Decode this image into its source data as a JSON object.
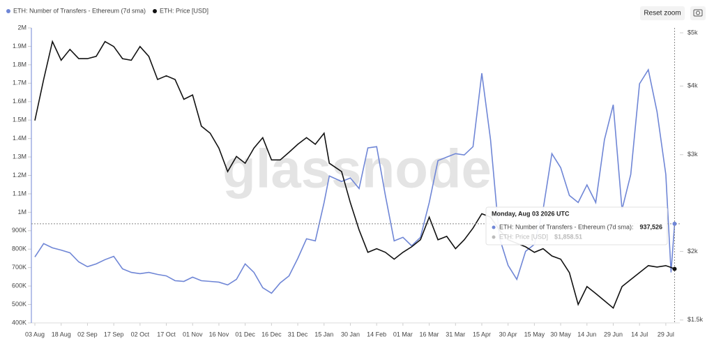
{
  "chart_data": {
    "type": "line",
    "legend": [
      "ETH: Number of Transfers - Ethereum (7d sma)",
      "ETH: Price [USD]"
    ],
    "reset_button": "Reset zoom",
    "watermark": "glassnode",
    "x": [
      0,
      5,
      10,
      15,
      20,
      25,
      30,
      35,
      40,
      45,
      50,
      55,
      60,
      65,
      70,
      75,
      80,
      85,
      90,
      95,
      100,
      105,
      110,
      115,
      120,
      125,
      130,
      135,
      140,
      145,
      150,
      155,
      160,
      165,
      168,
      175,
      180,
      185,
      190,
      195,
      200,
      205,
      210,
      215,
      220,
      225,
      230,
      235,
      240,
      245,
      250,
      255,
      260,
      265,
      270,
      275,
      280,
      285,
      290,
      295,
      300,
      305,
      310,
      315,
      320,
      325,
      330,
      335,
      340,
      345,
      350,
      355,
      360,
      363,
      365
    ],
    "xlim": [
      -2,
      368
    ],
    "xticks": [
      {
        "value": 0,
        "label": "03 Aug"
      },
      {
        "value": 15,
        "label": "18 Aug"
      },
      {
        "value": 30,
        "label": "02 Sep"
      },
      {
        "value": 45,
        "label": "17 Sep"
      },
      {
        "value": 60,
        "label": "02 Oct"
      },
      {
        "value": 75,
        "label": "17 Oct"
      },
      {
        "value": 90,
        "label": "01 Nov"
      },
      {
        "value": 105,
        "label": "16 Nov"
      },
      {
        "value": 120,
        "label": "01 Dec"
      },
      {
        "value": 135,
        "label": "16 Dec"
      },
      {
        "value": 150,
        "label": "31 Dec"
      },
      {
        "value": 165,
        "label": "15 Jan"
      },
      {
        "value": 180,
        "label": "30 Jan"
      },
      {
        "value": 195,
        "label": "14 Feb"
      },
      {
        "value": 210,
        "label": "01 Mar"
      },
      {
        "value": 225,
        "label": "16 Mar"
      },
      {
        "value": 240,
        "label": "31 Mar"
      },
      {
        "value": 255,
        "label": "15 Apr"
      },
      {
        "value": 270,
        "label": "30 Apr"
      },
      {
        "value": 285,
        "label": "15 May"
      },
      {
        "value": 300,
        "label": "30 May"
      },
      {
        "value": 315,
        "label": "14 Jun"
      },
      {
        "value": 330,
        "label": "29 Jun"
      },
      {
        "value": 345,
        "label": "14 Jul"
      },
      {
        "value": 360,
        "label": "29 Jul"
      }
    ],
    "ylim": [
      400000,
      2000000
    ],
    "yticks": [
      {
        "value": 2000000,
        "label": "2M"
      },
      {
        "value": 1900000,
        "label": "1.9M"
      },
      {
        "value": 1800000,
        "label": "1.8M"
      },
      {
        "value": 1700000,
        "label": "1.7M"
      },
      {
        "value": 1600000,
        "label": "1.6M"
      },
      {
        "value": 1500000,
        "label": "1.5M"
      },
      {
        "value": 1400000,
        "label": "1.4M"
      },
      {
        "value": 1300000,
        "label": "1.3M"
      },
      {
        "value": 1200000,
        "label": "1.2M"
      },
      {
        "value": 1100000,
        "label": "1.1M"
      },
      {
        "value": 1000000,
        "label": "1M"
      },
      {
        "value": 900000,
        "label": "900K"
      },
      {
        "value": 800000,
        "label": "800K"
      },
      {
        "value": 700000,
        "label": "700K"
      },
      {
        "value": 600000,
        "label": "600K"
      },
      {
        "value": 500000,
        "label": "500K"
      },
      {
        "value": 400000,
        "label": "400K"
      }
    ],
    "y2lim": [
      1482,
      5104
    ],
    "y2log": true,
    "y2ticks": [
      {
        "value": 5000,
        "label": "$5k"
      },
      {
        "value": 4000,
        "label": "$4k"
      },
      {
        "value": 3000,
        "label": "$3k"
      },
      {
        "value": 2000,
        "label": "$2k"
      },
      {
        "value": 1500,
        "label": "$1.5k"
      }
    ],
    "series": [
      {
        "name": "ETH: Number of Transfers - Ethereum (7d sma)",
        "color": "#6f86d6",
        "axis": "y",
        "values": [
          758000,
          830000,
          807000,
          795000,
          780000,
          731000,
          705000,
          720000,
          743000,
          761000,
          693000,
          674000,
          667000,
          674000,
          663000,
          655000,
          629000,
          625000,
          648000,
          629000,
          625000,
          621000,
          606000,
          636000,
          720000,
          674000,
          591000,
          561000,
          617000,
          655000,
          750000,
          856000,
          845000,
          1053000,
          1197000,
          1167000,
          1186000,
          1129000,
          1349000,
          1356000,
          1091000,
          845000,
          864000,
          818000,
          864000,
          1053000,
          1280000,
          1299000,
          1318000,
          1311000,
          1356000,
          1754000,
          1394000,
          864000,
          712000,
          636000,
          788000,
          826000,
          1015000,
          1318000,
          1242000,
          1091000,
          1053000,
          1148000,
          1053000,
          1394000,
          1583000,
          1015000,
          1205000,
          1697000,
          1773000,
          1545000,
          1205000,
          674000,
          937526
        ]
      },
      {
        "name": "ETH: Price [USD]",
        "color": "#111111",
        "axis": "y2",
        "values": [
          3462,
          4111,
          4820,
          4456,
          4664,
          4487,
          4487,
          4530,
          4820,
          4721,
          4487,
          4456,
          4721,
          4530,
          4111,
          4175,
          4111,
          3784,
          3854,
          3381,
          3282,
          3084,
          2795,
          2978,
          2894,
          3084,
          3222,
          2935,
          2935,
          3030,
          3133,
          3222,
          3133,
          3282,
          2894,
          2795,
          2452,
          2188,
          1992,
          2023,
          1992,
          1936,
          1992,
          2039,
          2100,
          2309,
          2100,
          2130,
          2023,
          2100,
          2205,
          2342,
          2309,
          2188,
          2100,
          2069,
          2039,
          1992,
          2023,
          1962,
          1936,
          1830,
          1601,
          1726,
          1676,
          1626,
          1577,
          1726,
          1777,
          1830,
          1884,
          1873,
          1884,
          1870,
          1858.51
        ]
      }
    ],
    "tooltip": {
      "date": "Monday, Aug 03 2026 UTC",
      "items": [
        {
          "name": "ETH: Number of Transfers - Ethereum (7d sma):",
          "label": "937,526"
        },
        {
          "name": "ETH: Price [USD]",
          "label": "$1,858.51"
        }
      ]
    }
  }
}
